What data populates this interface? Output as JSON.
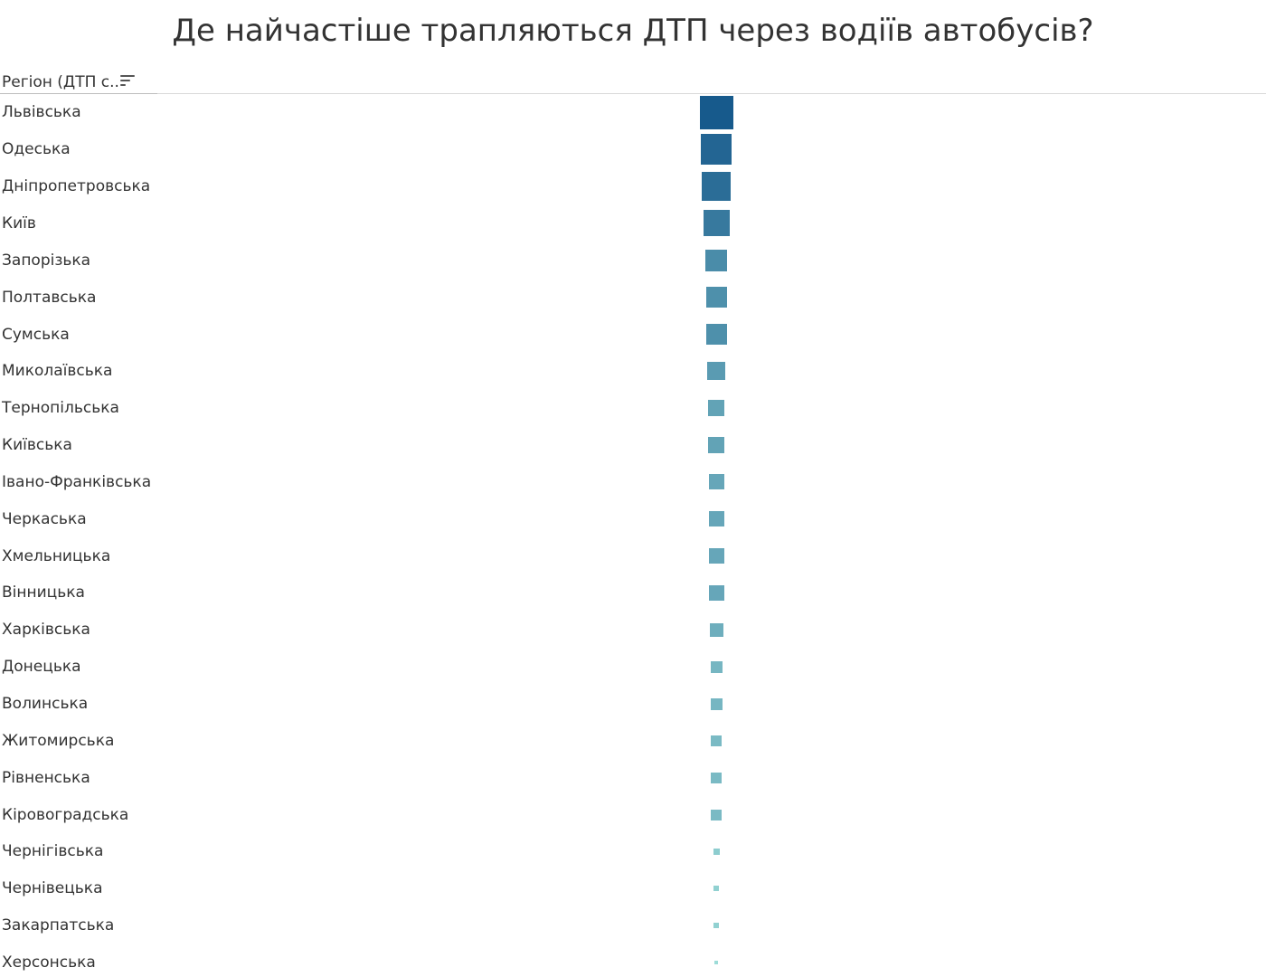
{
  "title": "Де найчастіше трапляються ДТП через водіїв автобусів?",
  "header": {
    "column_label": "Регіон (ДТП с..",
    "sort_icon": "sort-descending-icon"
  },
  "chart_data": {
    "type": "table",
    "mark": "square",
    "size_encodes": "accident_count",
    "color_scale": [
      "#9ddcd8",
      "#175a8c"
    ],
    "categories": [
      "Львівська",
      "Одеська",
      "Дніпропетровська",
      "Київ",
      "Запорізька",
      "Полтавська",
      "Сумська",
      "Миколаївська",
      "Тернопільська",
      "Київська",
      "Івано-Франківська",
      "Черкаська",
      "Хмельницька",
      "Вінницька",
      "Харківська",
      "Донецька",
      "Волинська",
      "Житомирська",
      "Рівненська",
      "Кіровоградська",
      "Чернігівська",
      "Чернівецька",
      "Закарпатська",
      "Херсонська"
    ],
    "values": [
      37,
      34,
      32,
      29,
      24,
      23,
      23,
      20,
      18,
      18,
      17,
      17,
      17,
      17,
      15,
      13,
      13,
      12,
      12,
      12,
      7,
      6,
      6,
      3
    ]
  }
}
